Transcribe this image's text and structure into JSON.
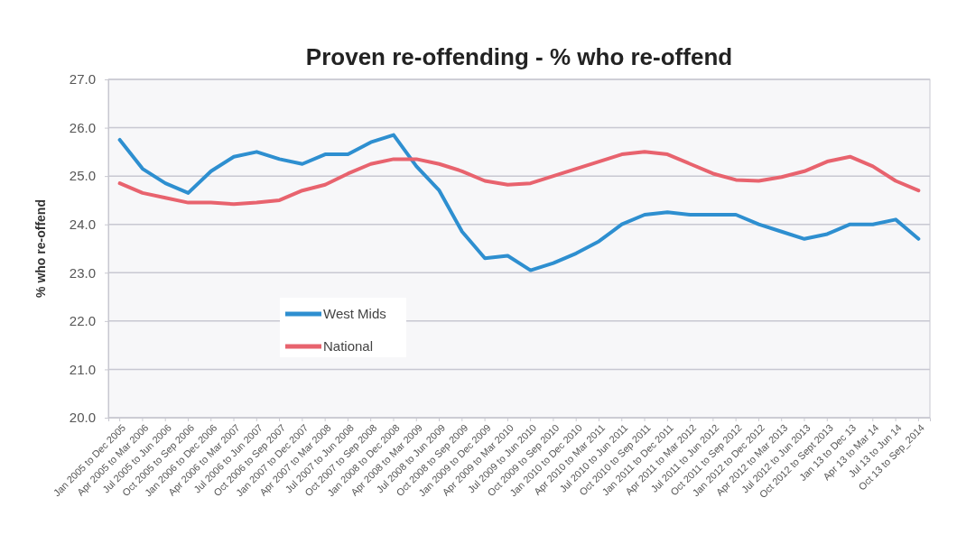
{
  "chart_data": {
    "type": "line",
    "title": "Proven re-offending - % who re-offend",
    "ylabel": "% who re-offend",
    "categories": [
      "Jan 2005 to Dec 2005",
      "Apr 2005 to Mar 2006",
      "Jul 2005 to Jun 2006",
      "Oct 2005 to Sep 2006",
      "Jan 2006 to Dec 2006",
      "Apr 2006 to Mar 2007",
      "Jul 2006 to Jun 2007",
      "Oct 2006 to Sep 2007",
      "Jan 2007 to Dec 2007",
      "Apr 2007 to Mar 2008",
      "Jul 2007 to Jun 2008",
      "Oct 2007 to Sep 2008",
      "Jan 2008 to Dec 2008",
      "Apr 2008 to Mar 2009",
      "Jul 2008 to Jun 2009",
      "Oct 2008 to Sep 2009",
      "Jan 2009 to Dec 2009",
      "Apr 2009 to Mar 2010",
      "Jul 2009 to Jun 2010",
      "Oct 2009 to Sep 2010",
      "Jan 2010 to Dec 2010",
      "Apr 2010 to Mar 2011",
      "Jul 2010 to Jun 2011",
      "Oct 2010 to Sep 2011",
      "Jan 2011 to Dec 2011",
      "Apr 2011 to Mar 2012",
      "Jul 2011 to Jun 2012",
      "Oct 2011 to Sep 2012",
      "Jan 2012 to Dec 2012",
      "Apr 2012 to Mar 2013",
      "Jul 2012 to Jun 2013",
      "Oct 2012 to Sept 2013",
      "Jan 13 to Dec 13",
      "Apr 13 to Mar 14",
      "Jul 13 to Jun 14",
      "Oct 13 to Sep_2014"
    ],
    "series": [
      {
        "name": "West Mids",
        "color": "#2e8fd0",
        "values": [
          25.75,
          25.15,
          24.85,
          24.65,
          25.1,
          25.4,
          25.5,
          25.35,
          25.25,
          25.45,
          25.45,
          25.7,
          25.85,
          25.2,
          24.7,
          23.85,
          23.3,
          23.35,
          23.05,
          23.2,
          23.4,
          23.65,
          24.0,
          24.2,
          24.25,
          24.2,
          24.2,
          24.2,
          24.0,
          23.85,
          23.7,
          23.8,
          24.0,
          24.0,
          24.1,
          23.7
        ]
      },
      {
        "name": "National",
        "color": "#e8636e",
        "values": [
          24.85,
          24.65,
          24.55,
          24.45,
          24.45,
          24.42,
          24.45,
          24.5,
          24.7,
          24.82,
          25.05,
          25.25,
          25.35,
          25.35,
          25.25,
          25.1,
          24.9,
          24.82,
          24.85,
          25.0,
          25.15,
          25.3,
          25.45,
          25.5,
          25.45,
          25.25,
          25.05,
          24.92,
          24.9,
          24.98,
          25.1,
          25.3,
          25.4,
          25.2,
          24.9,
          24.7
        ]
      }
    ],
    "ylim": [
      20,
      27
    ],
    "yticks": [
      {
        "value": 20,
        "label": "20.0"
      },
      {
        "value": 21,
        "label": "21.0"
      },
      {
        "value": 22,
        "label": "22.0"
      },
      {
        "value": 23,
        "label": "23.0"
      },
      {
        "value": 24,
        "label": "24.0"
      },
      {
        "value": 25,
        "label": "25.0"
      },
      {
        "value": 26,
        "label": "26.0"
      },
      {
        "value": 27,
        "label": "27.0"
      }
    ],
    "grid": "y",
    "legend": "bottom left",
    "marker": "none",
    "line_style": "solid"
  }
}
